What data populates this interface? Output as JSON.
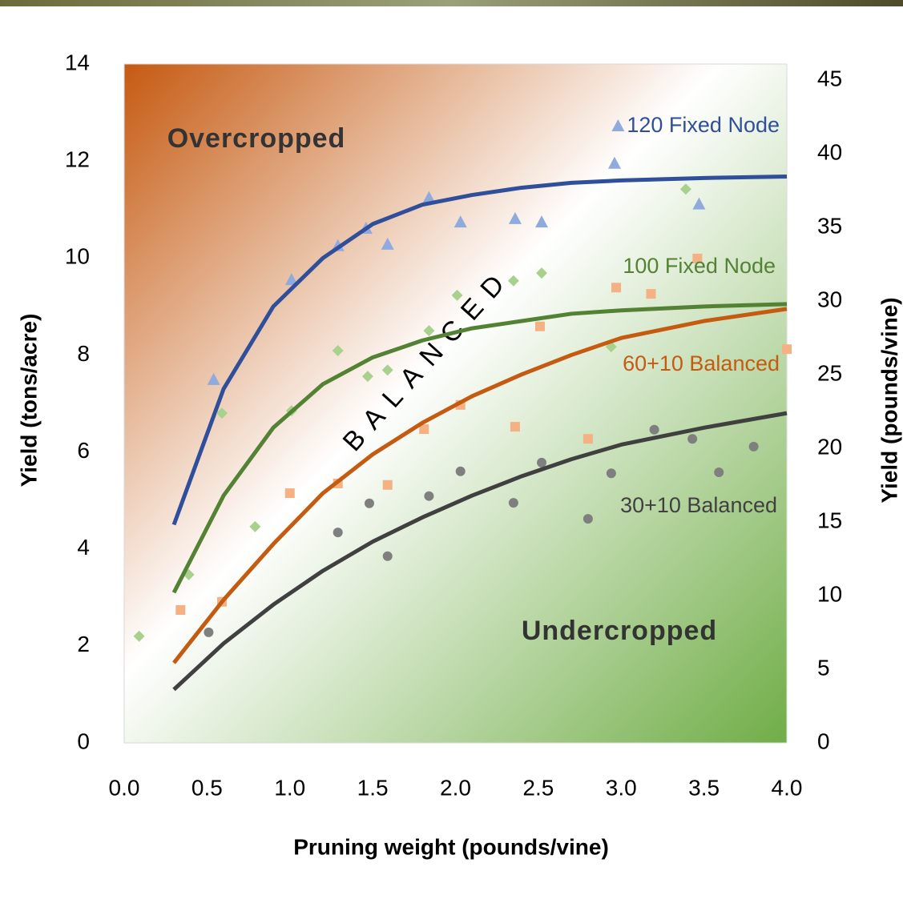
{
  "chart_data": {
    "type": "scatter",
    "x_label": "Pruning weight (pounds/vine)",
    "y_label": "Yield (tons/acre)",
    "y2_label": "Yield (pounds/vine)",
    "xlim": [
      0,
      4
    ],
    "xticks": [
      {
        "value": 0,
        "label": "0.0"
      },
      0.5,
      {
        "value": 1,
        "label": "1.0"
      },
      1.5,
      {
        "value": 2,
        "label": "2.0"
      },
      2.5,
      {
        "value": 3,
        "label": "3.0"
      },
      3.5,
      {
        "value": 4,
        "label": "4.0"
      }
    ],
    "ylim": [
      0,
      14
    ],
    "yticks": [
      0,
      2,
      4,
      6,
      8,
      10,
      12,
      14
    ],
    "y2lim": [
      0,
      46.1
    ],
    "y2ticks": [
      0,
      5,
      10,
      15,
      20,
      25,
      30,
      35,
      40,
      45
    ],
    "annotations": [
      "Overcropped",
      "BALANCED",
      "Undercropped"
    ],
    "series": [
      {
        "name": "120 Fixed Node",
        "color": "#2f4f9a",
        "marker_color": "#8faadc",
        "marker": "triangle",
        "x": [
          0.54,
          1.01,
          1.29,
          1.46,
          1.59,
          1.84,
          2.03,
          2.36,
          2.52,
          2.96,
          3.47
        ],
        "values": [
          7.48,
          9.54,
          10.24,
          10.6,
          10.27,
          11.23,
          10.73,
          10.8,
          10.73,
          11.94,
          11.1
        ],
        "fit": {
          "x": [
            0.3,
            0.6,
            0.9,
            1.2,
            1.5,
            1.8,
            2.1,
            2.4,
            2.7,
            3.0,
            3.5,
            4.0
          ],
          "values": [
            4.5,
            7.3,
            9.0,
            10.0,
            10.7,
            11.1,
            11.3,
            11.45,
            11.55,
            11.6,
            11.65,
            11.68
          ]
        }
      },
      {
        "name": "100 Fixed Node",
        "color": "#548235",
        "marker_color": "#a9d18e",
        "marker": "diamond",
        "x": [
          0.09,
          0.39,
          0.59,
          0.79,
          1.01,
          1.29,
          1.47,
          1.59,
          1.84,
          2.01,
          2.35,
          2.52,
          2.94,
          3.39
        ],
        "values": [
          2.2,
          3.47,
          6.8,
          4.46,
          6.85,
          8.09,
          7.56,
          7.69,
          8.5,
          9.23,
          9.53,
          9.69,
          8.17,
          11.42
        ],
        "fit": {
          "x": [
            0.3,
            0.6,
            0.9,
            1.2,
            1.5,
            1.8,
            2.1,
            2.4,
            2.7,
            3.0,
            3.5,
            4.0
          ],
          "values": [
            3.1,
            5.1,
            6.5,
            7.4,
            7.95,
            8.3,
            8.55,
            8.7,
            8.85,
            8.92,
            9.0,
            9.05
          ]
        }
      },
      {
        "name": "60+10 Balanced",
        "color": "#c55a11",
        "marker_color": "#f4b183",
        "marker": "square",
        "x": [
          0.34,
          0.59,
          1.0,
          1.29,
          1.59,
          1.81,
          2.03,
          2.36,
          2.51,
          2.8,
          2.97,
          3.18,
          3.46,
          4.0
        ],
        "values": [
          2.74,
          2.91,
          5.15,
          5.35,
          5.32,
          6.47,
          6.97,
          6.52,
          8.59,
          6.27,
          9.39,
          9.26,
          9.99,
          8.12
        ],
        "fit": {
          "x": [
            0.3,
            0.6,
            0.9,
            1.2,
            1.5,
            1.8,
            2.1,
            2.4,
            2.7,
            3.0,
            3.5,
            4.0
          ],
          "values": [
            1.65,
            2.95,
            4.1,
            5.15,
            5.95,
            6.6,
            7.15,
            7.6,
            8.0,
            8.35,
            8.7,
            8.95
          ]
        }
      },
      {
        "name": "30+10 Balanced",
        "color": "#404040",
        "marker_color": "#7f7f7f",
        "marker": "circle",
        "x": [
          0.51,
          1.29,
          1.48,
          1.59,
          1.84,
          2.03,
          2.35,
          2.52,
          2.8,
          2.94,
          3.2,
          3.43,
          3.59,
          3.8
        ],
        "values": [
          2.28,
          4.34,
          4.94,
          3.85,
          5.09,
          5.6,
          4.95,
          5.78,
          4.62,
          5.56,
          6.46,
          6.27,
          5.58,
          6.11
        ],
        "fit": {
          "x": [
            0.3,
            0.6,
            0.9,
            1.2,
            1.5,
            1.8,
            2.1,
            2.4,
            2.7,
            3.0,
            3.5,
            4.0
          ],
          "values": [
            1.1,
            2.05,
            2.85,
            3.55,
            4.15,
            4.65,
            5.1,
            5.5,
            5.85,
            6.15,
            6.5,
            6.8
          ]
        }
      }
    ]
  }
}
